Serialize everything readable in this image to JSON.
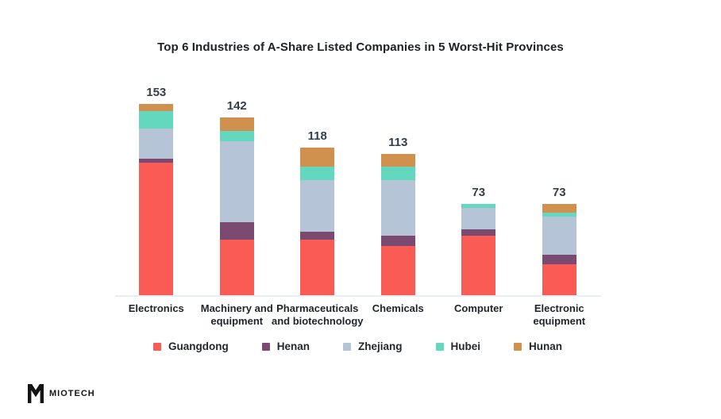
{
  "title": "Top 6 Industries of A-Share Listed Companies in 5 Worst-Hit Provinces",
  "logo": {
    "text": "MIOTECH"
  },
  "chart_data": {
    "type": "bar",
    "stacked": true,
    "title": "Top 6 Industries of A-Share Listed Companies in 5 Worst-Hit Provinces",
    "categories": [
      "Electronics",
      "Machinery and equipment",
      "Pharmaceuticals and biotechnology",
      "Chemicals",
      "Computer",
      "Electronic equipment"
    ],
    "totals": [
      153,
      142,
      118,
      113,
      73,
      73
    ],
    "series": [
      {
        "name": "Guangdong",
        "color": "#fb5b55",
        "values": [
          106,
          45,
          45,
          40,
          48,
          25
        ]
      },
      {
        "name": "Henan",
        "color": "#7a4a71",
        "values": [
          3,
          14,
          6,
          8,
          5,
          8
        ]
      },
      {
        "name": "Zhejiang",
        "color": "#b5c4d7",
        "values": [
          24,
          64,
          41,
          44,
          17,
          30
        ]
      },
      {
        "name": "Hubei",
        "color": "#63d8bf",
        "values": [
          14,
          8,
          11,
          11,
          3,
          3
        ]
      },
      {
        "name": "Hunan",
        "color": "#d0914e",
        "values": [
          6,
          11,
          15,
          10,
          0,
          7
        ]
      }
    ],
    "xlabel": "",
    "ylabel": "",
    "ylim": [
      0,
      160
    ],
    "grid": false,
    "legend_position": "bottom",
    "value_label_color": "#333e4d",
    "axis_line_color": "#e9eef3"
  }
}
